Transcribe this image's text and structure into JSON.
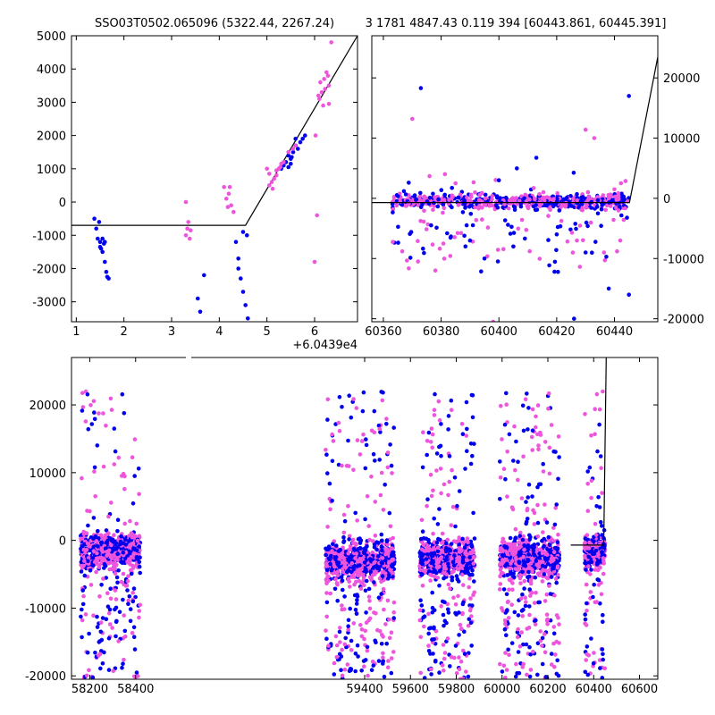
{
  "chart_data": [
    {
      "id": "top-left",
      "type": "scatter",
      "title": "SSO03T0502.065096 (5322.44, 2267.24)",
      "xlim": [
        0.9,
        6.9
      ],
      "ylim": [
        -3600,
        5000
      ],
      "x_ticks": [
        1,
        2,
        3,
        4,
        5,
        6
      ],
      "y_ticks": [
        -3000,
        -2000,
        -1000,
        0,
        1000,
        2000,
        3000,
        4000,
        5000
      ],
      "x_offset_label": "+6.0439e4",
      "grid": false,
      "colors": {
        "blue": "#0000ee",
        "pink": "#ee55dd",
        "line": "#000000"
      },
      "model_line": {
        "x": [
          0.9,
          4.35,
          4.55,
          6.9
        ],
        "y": [
          -700,
          -700,
          -700,
          5000
        ]
      },
      "series": [
        {
          "color": "blue",
          "x": [
            1.38,
            1.42,
            1.45,
            1.48,
            1.5,
            1.52,
            1.55,
            1.58,
            1.6,
            1.63,
            1.65,
            1.68,
            1.5,
            1.55,
            1.6
          ],
          "y": [
            -500,
            -800,
            -1100,
            -600,
            -1200,
            -1400,
            -1100,
            -1250,
            -1800,
            -2100,
            -2250,
            -2300,
            -1350,
            -1500,
            -1200
          ]
        },
        {
          "color": "blue",
          "x": [
            3.55,
            3.6,
            3.68,
            4.35,
            4.4,
            4.45,
            4.5,
            4.55,
            4.6,
            4.4,
            4.5,
            4.58
          ],
          "y": [
            -2900,
            -3300,
            -2200,
            -1200,
            -1700,
            -2300,
            -2700,
            -3100,
            -3500,
            -2000,
            -900,
            -1000
          ]
        },
        {
          "color": "blue",
          "x": [
            5.3,
            5.4,
            5.45,
            5.5,
            5.55,
            5.6,
            5.65,
            5.7,
            5.75,
            5.8,
            5.5,
            5.45,
            5.6,
            5.35,
            5.52
          ],
          "y": [
            1000,
            1200,
            1050,
            1300,
            1500,
            1700,
            1600,
            1800,
            1900,
            2000,
            1150,
            1400,
            1900,
            1100,
            1350
          ]
        },
        {
          "color": "pink",
          "x": [
            3.3,
            3.33,
            3.35,
            3.38,
            3.4,
            3.3,
            4.1,
            4.15,
            4.2,
            4.25,
            4.3,
            4.22,
            4.18
          ],
          "y": [
            -1000,
            -800,
            -600,
            -1100,
            -850,
            0,
            450,
            100,
            250,
            -100,
            -300,
            450,
            -150
          ]
        },
        {
          "color": "pink",
          "x": [
            5.0,
            5.05,
            5.1,
            5.15,
            5.2,
            5.25,
            5.3,
            5.05,
            5.12,
            5.2,
            5.28,
            5.35,
            5.45,
            5.55,
            5.6
          ],
          "y": [
            1000,
            850,
            600,
            700,
            950,
            1000,
            1150,
            500,
            400,
            800,
            1050,
            1200,
            1500,
            1600,
            1700
          ]
        },
        {
          "color": "pink",
          "x": [
            6.0,
            6.05,
            6.1,
            6.15,
            6.2,
            6.25,
            6.28,
            6.3,
            6.35,
            6.18,
            6.22,
            6.12,
            6.3,
            6.02,
            6.08
          ],
          "y": [
            -1800,
            -400,
            3100,
            3300,
            3700,
            3900,
            3800,
            3500,
            4800,
            2900,
            3400,
            3600,
            2950,
            2000,
            3200
          ]
        }
      ]
    },
    {
      "id": "top-right",
      "type": "scatter",
      "title": "3 1781 4847.43 0.119 394 [60443.861, 60445.391]",
      "xlim": [
        60356,
        60455
      ],
      "ylim": [
        -20500,
        27000
      ],
      "x_ticks": [
        60360,
        60380,
        60400,
        60420,
        60440
      ],
      "y_ticks": [
        -20000,
        -10000,
        0,
        10000,
        20000
      ],
      "y_axis_side": "right",
      "grid": false,
      "colors": {
        "blue": "#0000ee",
        "pink": "#ee55dd",
        "line": "#000000"
      },
      "model_line": {
        "x": [
          60356,
          60445.2,
          60455
        ],
        "y": [
          -700,
          -700,
          23500
        ]
      },
      "clusters": [
        {
          "x_range": [
            60363,
            60445
          ],
          "y_center": -500,
          "y_spread": 1200,
          "count": 550
        },
        {
          "x_range": [
            60363,
            60445
          ],
          "y_center": -4000,
          "y_spread": 7000,
          "count": 140
        }
      ],
      "outliers": {
        "pink": {
          "x": [
            60370,
            60372,
            60378,
            60385,
            60398,
            60405,
            60412,
            60427,
            60430,
            60433,
            60440,
            60442
          ],
          "y": [
            13200,
            -10500,
            -12000,
            2500,
            -20500,
            -8000,
            1700,
            -7000,
            11400,
            10000,
            1500,
            -7000
          ]
        },
        "blue": {
          "x": [
            60373,
            60390,
            60395,
            60400,
            60405,
            60420,
            60426,
            60430,
            60438,
            60445,
            60445
          ],
          "y": [
            18300,
            -7000,
            -10000,
            3000,
            -8000,
            -6000,
            -20000,
            -9000,
            -15000,
            17000,
            -16000
          ]
        }
      }
    },
    {
      "id": "bottom",
      "type": "scatter",
      "xlim": [
        58120,
        60680
      ],
      "ylim": [
        -20500,
        27000
      ],
      "x_ticks": [
        58200,
        58400,
        59400,
        59600,
        59800,
        60000,
        60200,
        60400,
        60600
      ],
      "y_ticks": [
        -20000,
        -10000,
        0,
        10000,
        20000
      ],
      "grid": false,
      "colors": {
        "blue": "#0000ee",
        "pink": "#ee55dd",
        "line": "#000000"
      },
      "model_line": {
        "x": [
          60300,
          60443.9,
          60455
        ],
        "y": [
          -700,
          -700,
          27000
        ]
      },
      "seasons": [
        {
          "x_range": [
            58160,
            58420
          ],
          "y_center": -1500,
          "y_spread": 2500,
          "count": 600,
          "tail_count": 180
        },
        {
          "x_range": [
            59230,
            59530
          ],
          "y_center": -3000,
          "y_spread": 2800,
          "count": 700,
          "tail_count": 240
        },
        {
          "x_range": [
            59640,
            59880
          ],
          "y_center": -2500,
          "y_spread": 2500,
          "count": 600,
          "tail_count": 200
        },
        {
          "x_range": [
            59990,
            60250
          ],
          "y_center": -2500,
          "y_spread": 2800,
          "count": 650,
          "tail_count": 230
        },
        {
          "x_range": [
            60360,
            60450
          ],
          "y_center": -1500,
          "y_spread": 2000,
          "count": 250,
          "tail_count": 80
        }
      ]
    }
  ]
}
